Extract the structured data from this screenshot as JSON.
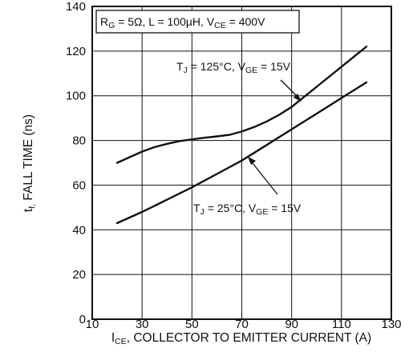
{
  "chart_data": {
    "type": "line",
    "xlabel": {
      "main": "I",
      "sub": "CE",
      "rest": ", COLLECTOR TO EMITTER CURRENT (A)"
    },
    "ylabel": {
      "main": "t",
      "sub": "f,",
      "rest": " FALL TIME (ns)"
    },
    "xlim": [
      10,
      130
    ],
    "ylim": [
      0,
      140
    ],
    "x_ticks": [
      10,
      30,
      50,
      70,
      90,
      110,
      130
    ],
    "y_ticks": [
      0,
      20,
      40,
      60,
      80,
      100,
      120,
      140
    ],
    "grid": true,
    "conditions_box": {
      "parts": [
        {
          "t": "R"
        },
        {
          "t": "G",
          "sub": true
        },
        {
          "t": " = 5Ω, L = 100µH, V"
        },
        {
          "t": "CE",
          "sub": true
        },
        {
          "t": " = 400V"
        }
      ]
    },
    "series": [
      {
        "label": {
          "parts": [
            {
              "t": "T"
            },
            {
              "t": "J",
              "sub": true
            },
            {
              "t": " = 125°C, V"
            },
            {
              "t": "GE",
              "sub": true
            },
            {
              "t": " = 15V"
            }
          ]
        },
        "x": [
          20,
          25,
          30,
          35,
          40,
          45,
          50,
          55,
          60,
          65,
          70,
          75,
          80,
          85,
          90,
          95,
          100,
          105,
          110,
          115,
          120
        ],
        "y": [
          70,
          72.5,
          75,
          77,
          78.5,
          79.7,
          80.5,
          81.2,
          81.8,
          82.5,
          84,
          86,
          88.5,
          91.5,
          95,
          99.5,
          104,
          108.5,
          113,
          117.5,
          122
        ]
      },
      {
        "label": {
          "parts": [
            {
              "t": "T"
            },
            {
              "t": "J",
              "sub": true
            },
            {
              "t": " = 25°C, V"
            },
            {
              "t": "GE",
              "sub": true
            },
            {
              "t": " = 15V"
            }
          ]
        },
        "x": [
          20,
          30,
          40,
          50,
          60,
          70,
          80,
          90,
          100,
          110,
          120
        ],
        "y": [
          43,
          48,
          53.5,
          59,
          65,
          71,
          78,
          85,
          92,
          99,
          106
        ]
      }
    ]
  }
}
